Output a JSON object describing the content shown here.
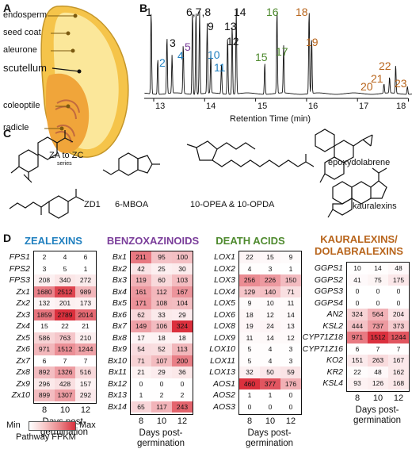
{
  "panels": {
    "a": "A",
    "b": "B",
    "c": "C",
    "d": "D"
  },
  "seed_labels": [
    "endosperm",
    "seed coat",
    "aleurone",
    "scutellum",
    "coleoptile",
    "radicle"
  ],
  "chrom": {
    "xlabel": "Retention Time (min)",
    "ticks": [
      "13",
      "14",
      "15",
      "16",
      "17",
      "18"
    ],
    "peaks": [
      {
        "label": "1",
        "color": "#111111"
      },
      {
        "label": "2",
        "color": "#1f7fbf"
      },
      {
        "label": "3",
        "color": "#111111"
      },
      {
        "label": "4",
        "color": "#1f7fbf"
      },
      {
        "label": "5",
        "color": "#7a3d9a"
      },
      {
        "label": "6,7,8",
        "color": "#111111"
      },
      {
        "label": "9",
        "color": "#111111"
      },
      {
        "label": "10",
        "color": "#1f7fbf"
      },
      {
        "label": "11",
        "color": "#1f7fbf"
      },
      {
        "label": "12",
        "color": "#111111"
      },
      {
        "label": "13",
        "color": "#111111"
      },
      {
        "label": "14",
        "color": "#111111"
      },
      {
        "label": "15",
        "color": "#4e8a2e"
      },
      {
        "label": "16",
        "color": "#4e8a2e"
      },
      {
        "label": "17",
        "color": "#4e8a2e"
      },
      {
        "label": "18",
        "color": "#b8651c"
      },
      {
        "label": "19",
        "color": "#b8651c"
      },
      {
        "label": "20",
        "color": "#b8651c"
      },
      {
        "label": "21",
        "color": "#b8651c"
      },
      {
        "label": "22",
        "color": "#b8651c"
      },
      {
        "label": "23",
        "color": "#b8651c"
      }
    ]
  },
  "chem": {
    "za": "ZA to ZC",
    "za_sub": "series",
    "zd1": "ZD1",
    "mboa": "6-MBOA",
    "opea": "10-OPEA & 10-OPDA",
    "epoxy": "epoxydolabrene",
    "kaura": "kauralexins"
  },
  "heatmaps": [
    {
      "title": [
        "ZEALEXINS"
      ],
      "color": "#1f7fbf",
      "genes": [
        "FPS1",
        "FPS2",
        "FPS3",
        "Zx1",
        "Zx2",
        "Zx3",
        "Zx4",
        "Zx5",
        "Zx6",
        "Zx7",
        "Zx8",
        "Zx9",
        "Zx10"
      ],
      "values": [
        [
          2,
          4,
          6
        ],
        [
          3,
          5,
          1
        ],
        [
          208,
          340,
          272
        ],
        [
          1680,
          2512,
          989
        ],
        [
          132,
          201,
          173
        ],
        [
          1859,
          2789,
          2014
        ],
        [
          15,
          22,
          21
        ],
        [
          586,
          763,
          210
        ],
        [
          971,
          1512,
          1244
        ],
        [
          6,
          7,
          7
        ],
        [
          892,
          1326,
          516
        ],
        [
          296,
          428,
          157
        ],
        [
          899,
          1307,
          292
        ]
      ]
    },
    {
      "title": [
        "BENZOXAZINOIDS"
      ],
      "color": "#7a3d9a",
      "genes": [
        "Bx1",
        "Bx2",
        "Bx3",
        "Bx4",
        "Bx5",
        "Bx6",
        "Bx7",
        "Bx8",
        "Bx9",
        "Bx10",
        "Bx11",
        "Bx12",
        "Bx13",
        "Bx14"
      ],
      "values": [
        [
          211,
          95,
          100
        ],
        [
          42,
          25,
          30
        ],
        [
          119,
          60,
          103
        ],
        [
          161,
          112,
          167
        ],
        [
          171,
          108,
          104
        ],
        [
          62,
          33,
          29
        ],
        [
          149,
          106,
          324
        ],
        [
          17,
          18,
          18
        ],
        [
          54,
          52,
          113
        ],
        [
          71,
          107,
          200
        ],
        [
          21,
          29,
          36
        ],
        [
          0,
          0,
          0
        ],
        [
          1,
          2,
          2
        ],
        [
          65,
          117,
          243
        ]
      ]
    },
    {
      "title": [
        "DEATH ACIDS"
      ],
      "color": "#4e8a2e",
      "genes": [
        "LOX1",
        "LOX2",
        "LOX3",
        "LOX4",
        "LOX5",
        "LOX6",
        "LOX8",
        "LOX9",
        "LOX10",
        "LOX11",
        "LOX13",
        "AOS1",
        "AOS2",
        "AOS3"
      ],
      "values": [
        [
          22,
          15,
          9
        ],
        [
          4,
          3,
          1
        ],
        [
          256,
          226,
          150
        ],
        [
          129,
          140,
          71
        ],
        [
          9,
          10,
          11
        ],
        [
          18,
          12,
          14
        ],
        [
          19,
          24,
          13
        ],
        [
          11,
          14,
          12
        ],
        [
          5,
          4,
          3
        ],
        [
          5,
          4,
          3
        ],
        [
          32,
          50,
          59
        ],
        [
          460,
          377,
          176
        ],
        [
          1,
          1,
          0
        ],
        [
          0,
          0,
          0
        ]
      ]
    },
    {
      "title": [
        "KAURALEXINS/",
        "DOLABRALEXINS"
      ],
      "color": "#b8651c",
      "genes": [
        "GGPS1",
        "GGPS2",
        "GGPS3",
        "GGPS4",
        "AN2",
        "KSL2",
        "CYP71Z18",
        "CYP71Z16",
        "KO2",
        "KR2",
        "KSL4"
      ],
      "values": [
        [
          10,
          14,
          48
        ],
        [
          41,
          75,
          175
        ],
        [
          0,
          0,
          0
        ],
        [
          0,
          0,
          0
        ],
        [
          324,
          564,
          204
        ],
        [
          444,
          737,
          373
        ],
        [
          971,
          1512,
          1244
        ],
        [
          6,
          7,
          7
        ],
        [
          151,
          263,
          167
        ],
        [
          22,
          48,
          162
        ],
        [
          93,
          126,
          168
        ]
      ]
    }
  ],
  "days": [
    "8",
    "10",
    "12"
  ],
  "days_title": [
    "Days post-",
    "germination"
  ],
  "legend": {
    "min": "Min",
    "max": "Max",
    "title": "Pathway FPKM"
  }
}
